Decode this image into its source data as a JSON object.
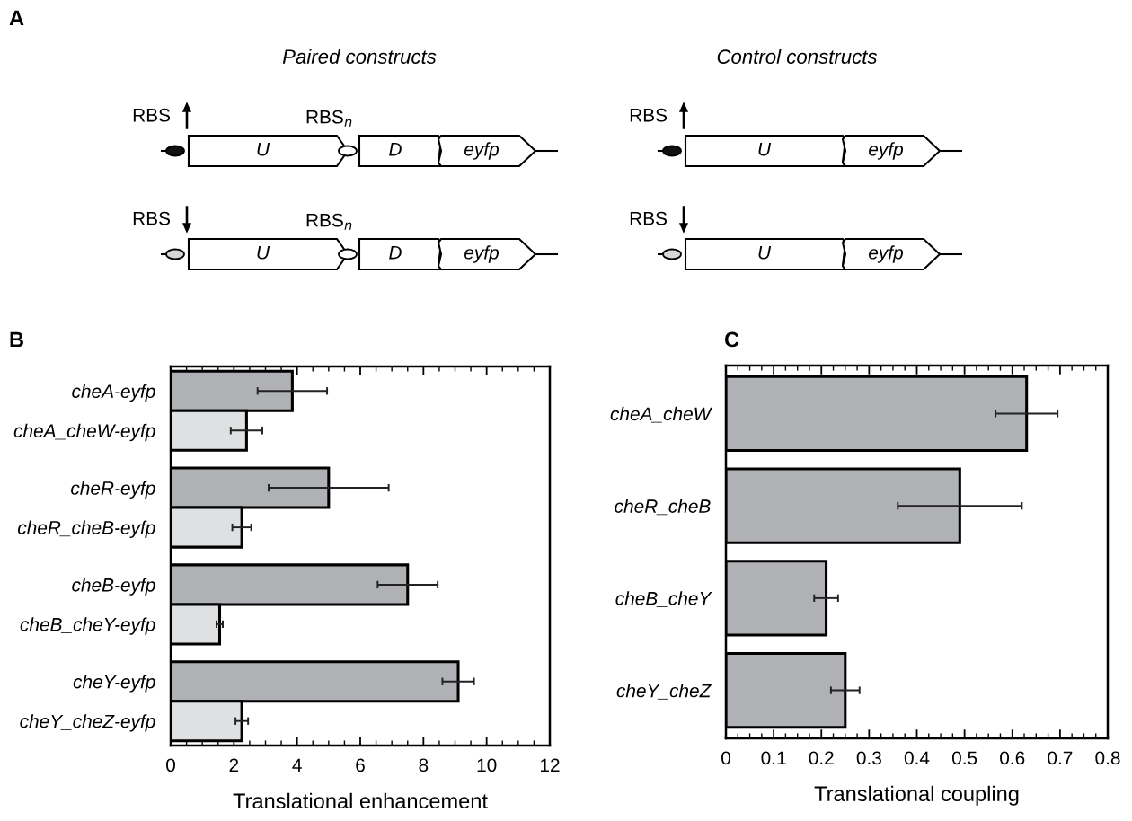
{
  "chart_data": [
    {
      "type": "other",
      "title": "A",
      "annotations": [
        "Paired constructs",
        "Control constructs",
        "RBS",
        "RBS$_{n}$",
        "U",
        "D",
        "eyfp",
        "RBS",
        "RBS$_{n}$",
        "U",
        "D",
        "eyfp",
        "RBS",
        "U",
        "eyfp",
        "RBS",
        "U",
        "eyfp"
      ]
    },
    {
      "type": "bar",
      "title": "B",
      "orientation": "horizontal",
      "xlabel": "Translational enhancement",
      "categories": [
        "cheA-eyfp",
        "cheA_cheW-eyfp",
        "cheR-eyfp",
        "cheR_cheB-eyfp",
        "cheB-eyfp",
        "cheB_cheY-eyfp",
        "cheY-eyfp",
        "cheY_cheZ-eyfp"
      ],
      "values": [
        3.85,
        2.4,
        5.0,
        2.25,
        7.5,
        1.55,
        9.1,
        2.25
      ],
      "errors": [
        1.1,
        0.5,
        1.9,
        0.3,
        0.95,
        0.1,
        0.5,
        0.2
      ],
      "colors": [
        "#afb1b4",
        "#dfe0e2",
        "#afb1b4",
        "#dfe0e2",
        "#afb1b4",
        "#dfe0e2",
        "#afb1b4",
        "#dfe0e2"
      ],
      "xlim": [
        0,
        12
      ],
      "xticks": [
        0,
        2,
        4,
        6,
        8,
        10,
        12
      ]
    },
    {
      "type": "bar",
      "title": "C",
      "orientation": "horizontal",
      "xlabel": "Translational coupling",
      "categories": [
        "cheA_cheW",
        "cheR_cheB",
        "cheB_cheY",
        "cheY_cheZ"
      ],
      "values": [
        0.63,
        0.49,
        0.21,
        0.25
      ],
      "errors": [
        0.065,
        0.13,
        0.025,
        0.03
      ],
      "colors": [
        "#afb1b4",
        "#afb1b4",
        "#afb1b4",
        "#afb1b4"
      ],
      "xlim": [
        0,
        0.8
      ],
      "xticks": [
        0,
        0.1,
        0.2,
        0.3,
        0.4,
        0.5,
        0.6,
        0.7,
        0.8
      ]
    }
  ]
}
